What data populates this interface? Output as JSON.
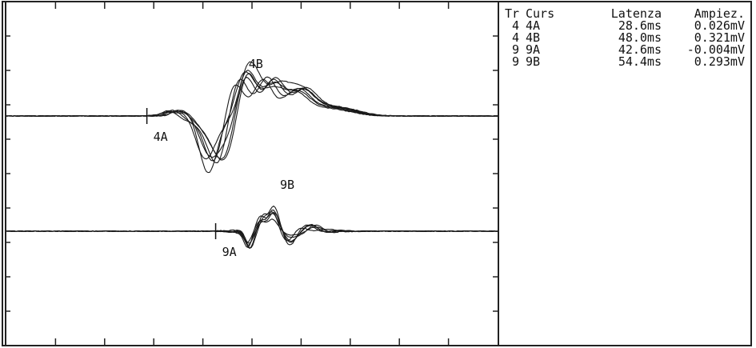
{
  "colors": {
    "trace": "#1a1a1a",
    "grid": "#222222",
    "background": "#ffffff"
  },
  "table": {
    "headers": {
      "tr": "Tr",
      "curs": "Curs",
      "latency": "Latenza",
      "amplitude": "Ampiez."
    },
    "rows": [
      {
        "tr": "4",
        "curs": "4A",
        "latency": "28.6ms",
        "amplitude": "0.026mV"
      },
      {
        "tr": "4",
        "curs": "4B",
        "latency": "48.0ms",
        "amplitude": "0.321mV"
      },
      {
        "tr": "9",
        "curs": "9A",
        "latency": "42.6ms",
        "amplitude": "-0.004mV"
      },
      {
        "tr": "9",
        "curs": "9B",
        "latency": "54.4ms",
        "amplitude": "0.293mV"
      }
    ]
  },
  "chart_data": {
    "type": "line",
    "title": "",
    "xlabel": "",
    "ylabel": "",
    "grid": false,
    "x_range_ms": [
      0,
      100
    ],
    "channels": [
      {
        "id": "ch4",
        "sweeps": 7,
        "cursors": [
          {
            "label": "4A",
            "latency_ms": 28.6,
            "amplitude_mV": 0.026
          },
          {
            "label": "4B",
            "latency_ms": 48.0,
            "amplitude_mV": 0.321
          }
        ]
      },
      {
        "id": "ch9",
        "sweeps": 6,
        "cursors": [
          {
            "label": "9A",
            "latency_ms": 42.6,
            "amplitude_mV": -0.004
          },
          {
            "label": "9B",
            "latency_ms": 54.4,
            "amplitude_mV": 0.293
          }
        ]
      }
    ]
  }
}
